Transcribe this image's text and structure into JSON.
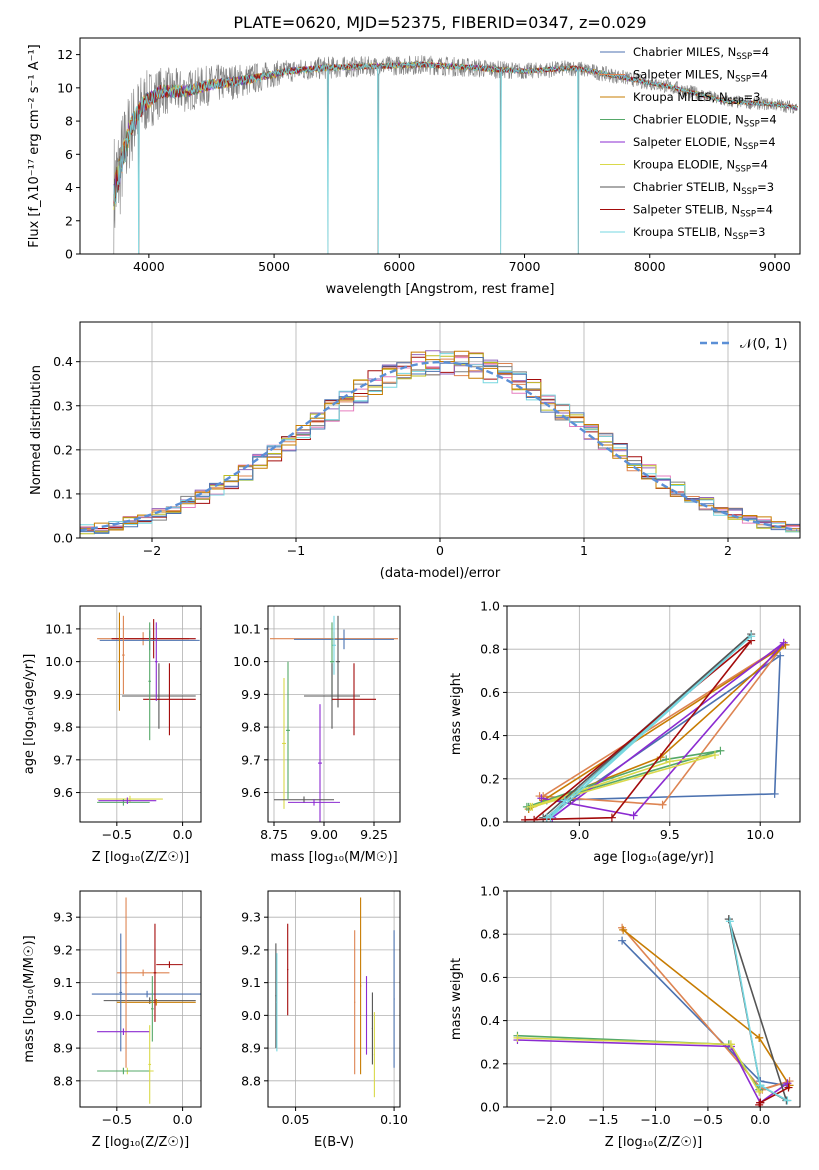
{
  "title": "PLATE=0620, MJD=52375, FIBERID=0347, z=0.029",
  "colors": {
    "grid": "#b0b0b0",
    "series": [
      "#4c72b0",
      "#dd8452",
      "#c77c02",
      "#55a868",
      "#8b2bd1",
      "#d9d94a",
      "#555555",
      "#a30b0b",
      "#76d7e0"
    ],
    "hist": [
      "#dd8452",
      "#e67dbf",
      "#7f7f7f",
      "#a30b0b",
      "#9467bd",
      "#bcbd22",
      "#76d7e0",
      "#4c72b0",
      "#c77c02"
    ]
  },
  "chart_data": [
    {
      "id": "spectrum",
      "type": "line",
      "xlabel": "wavelength [Angstrom, rest frame]",
      "ylabel": "Flux [f_λ10⁻¹⁷ erg cm⁻² s⁻¹ A⁻¹]",
      "xlim": [
        3450,
        9200
      ],
      "ylim": [
        0,
        13
      ],
      "xticks": [
        "4000",
        "5000",
        "6000",
        "7000",
        "8000",
        "9000"
      ],
      "yticks": [
        "0",
        "2",
        "4",
        "6",
        "8",
        "10",
        "12"
      ],
      "data_envelope": {
        "x": [
          3720,
          3780,
          3850,
          3950,
          4100,
          4300,
          4500,
          4800,
          5100,
          5400,
          5800,
          6200,
          6600,
          7000,
          7400,
          7800,
          8200,
          8600,
          9000,
          9180
        ],
        "y": [
          3.5,
          5.5,
          7.5,
          9.0,
          9.8,
          9.8,
          10.2,
          10.5,
          11.0,
          11.2,
          11.3,
          11.4,
          11.2,
          11.0,
          11.2,
          10.6,
          10.0,
          9.2,
          9.0,
          8.8
        ],
        "noise_amplitude": [
          4,
          3,
          2.5,
          2,
          1.5,
          1.3,
          1.2,
          1.0,
          0.7,
          0.7,
          0.6,
          0.6,
          0.6,
          0.5,
          0.5,
          0.45,
          0.45,
          0.4,
          0.4,
          0.4
        ]
      },
      "dropouts_x": [
        3920,
        5430,
        5830,
        6810,
        7430
      ],
      "legend_position": "upper right",
      "series": [
        {
          "name": "Chabrier MILES, N",
          "sub": "SSP",
          "count": "=4"
        },
        {
          "name": "Salpeter MILES, N",
          "sub": "SSP",
          "count": "=4"
        },
        {
          "name": "Kroupa MILES, N",
          "sub": "SSP",
          "count": "=3"
        },
        {
          "name": "Chabrier ELODIE, N",
          "sub": "SSP",
          "count": "=4"
        },
        {
          "name": "Salpeter ELODIE, N",
          "sub": "SSP",
          "count": "=4"
        },
        {
          "name": "Kroupa ELODIE, N",
          "sub": "SSP",
          "count": "=4"
        },
        {
          "name": "Chabrier STELIB, N",
          "sub": "SSP",
          "count": "=3"
        },
        {
          "name": "Salpeter STELIB, N",
          "sub": "SSP",
          "count": "=4"
        },
        {
          "name": "Kroupa STELIB, N",
          "sub": "SSP",
          "count": "=3"
        }
      ]
    },
    {
      "id": "residual-hist",
      "type": "line",
      "xlabel": "(data-model)/error",
      "ylabel": "Normed distribution",
      "xlim": [
        -2.5,
        2.5
      ],
      "ylim": [
        0,
        0.49
      ],
      "xticks": [
        "−2",
        "−1",
        "0",
        "1",
        "2"
      ],
      "yticks": [
        "0.0",
        "0.1",
        "0.2",
        "0.3",
        "0.4"
      ],
      "grid": true,
      "legend_position": "upper right",
      "gaussian_label": "𝒩(0, 1)",
      "bin_width": 0.1,
      "bin_start": -2.5,
      "n_bins": 50,
      "n_histograms": 9
    },
    {
      "id": "age-vs-Z",
      "type": "scatter",
      "xlabel": "Z [log₁₀(Z/Z☉)]",
      "ylabel": "age [log₁₀(age/yr)]",
      "xlim": [
        -0.78,
        0.14
      ],
      "ylim": [
        9.51,
        10.17
      ],
      "xticks": [
        "−0.5",
        "0.0"
      ],
      "yticks": [
        "9.6",
        "9.7",
        "9.8",
        "9.9",
        "10.0",
        "10.1"
      ],
      "grid": true,
      "crosses": [
        {
          "x": -0.3,
          "y": 10.07,
          "xerr": 0.35,
          "yerr": 0.02,
          "s": 1
        },
        {
          "x": -0.22,
          "y": 10.07,
          "xerr": 0.32,
          "yerr": 0.06,
          "s": 7
        },
        {
          "x": -0.25,
          "y": 10.065,
          "xerr": 0.38,
          "yerr": 0.03,
          "s": 0
        },
        {
          "x": -0.48,
          "y": 10.0,
          "xerr": 0.01,
          "yerr": 0.15,
          "s": 2
        },
        {
          "x": -0.45,
          "y": 10.02,
          "xerr": 0.01,
          "yerr": 0.12,
          "s": 1
        },
        {
          "x": -0.18,
          "y": 9.895,
          "xerr": 0.28,
          "yerr": 0.1,
          "s": 6
        },
        {
          "x": -0.1,
          "y": 9.885,
          "xerr": 0.2,
          "yerr": 0.11,
          "s": 7
        },
        {
          "x": -0.25,
          "y": 9.94,
          "xerr": 0.01,
          "yerr": 0.18,
          "s": 3
        },
        {
          "x": -0.2,
          "y": 10.0,
          "xerr": 0.01,
          "yerr": 0.12,
          "s": 4
        },
        {
          "x": -0.4,
          "y": 9.58,
          "xerr": 0.25,
          "yerr": 0.01,
          "s": 5
        },
        {
          "x": -0.45,
          "y": 9.57,
          "xerr": 0.2,
          "yerr": 0.01,
          "s": 3
        },
        {
          "x": -0.42,
          "y": 9.575,
          "xerr": 0.22,
          "yerr": 0.01,
          "s": 4
        }
      ]
    },
    {
      "id": "age-vs-mass",
      "type": "scatter",
      "xlabel": "mass [log₁₀(M/M☉)]",
      "ylabel": "",
      "xlim": [
        8.72,
        9.38
      ],
      "ylim": [
        9.51,
        10.17
      ],
      "xticks": [
        "8.75",
        "9.00",
        "9.25"
      ],
      "yticks": [
        "9.6",
        "9.7",
        "9.8",
        "9.9",
        "10.0",
        "10.1"
      ],
      "grid": true,
      "crosses": [
        {
          "x": 9.05,
          "y": 10.07,
          "xerr": 0.32,
          "yerr": 0.02,
          "s": 1
        },
        {
          "x": 9.1,
          "y": 10.068,
          "xerr": 0.25,
          "yerr": 0.03,
          "s": 0
        },
        {
          "x": 9.05,
          "y": 10.05,
          "xerr": 0.01,
          "yerr": 0.09,
          "s": 8
        },
        {
          "x": 9.07,
          "y": 10.0,
          "xerr": 0.01,
          "yerr": 0.14,
          "s": 6
        },
        {
          "x": 9.04,
          "y": 10.0,
          "xerr": 0.01,
          "yerr": 0.12,
          "s": 3
        },
        {
          "x": 9.04,
          "y": 9.895,
          "xerr": 0.14,
          "yerr": 0.1,
          "s": 6
        },
        {
          "x": 9.15,
          "y": 9.885,
          "xerr": 0.11,
          "yerr": 0.11,
          "s": 7
        },
        {
          "x": 8.82,
          "y": 9.79,
          "xerr": 0.01,
          "yerr": 0.21,
          "s": 3
        },
        {
          "x": 8.8,
          "y": 9.75,
          "xerr": 0.01,
          "yerr": 0.2,
          "s": 5
        },
        {
          "x": 8.98,
          "y": 9.69,
          "xerr": 0.01,
          "yerr": 0.18,
          "s": 4
        },
        {
          "x": 8.9,
          "y": 9.578,
          "xerr": 0.15,
          "yerr": 0.01,
          "s": 6
        },
        {
          "x": 8.95,
          "y": 9.57,
          "xerr": 0.13,
          "yerr": 0.01,
          "s": 4
        }
      ]
    },
    {
      "id": "weight-vs-age",
      "type": "line",
      "xlabel": "age [log₁₀(age/yr)]",
      "ylabel": "mass weight",
      "xlim": [
        8.6,
        10.22
      ],
      "ylim": [
        0,
        1
      ],
      "xticks": [
        "9.0",
        "9.5",
        "10.0"
      ],
      "yticks": [
        "0.0",
        "0.2",
        "0.4",
        "0.6",
        "0.8",
        "1.0"
      ],
      "grid": true,
      "series": [
        {
          "s": 0,
          "x": [
            8.82,
            10.08,
            10.11,
            8.95
          ],
          "y": [
            0.1,
            0.13,
            0.77,
            0.1
          ]
        },
        {
          "s": 1,
          "x": [
            8.78,
            9.46,
            10.13,
            8.8
          ],
          "y": [
            0.12,
            0.08,
            0.82,
            0.12
          ]
        },
        {
          "s": 2,
          "x": [
            8.72,
            9.45,
            10.14,
            8.8
          ],
          "y": [
            0.06,
            0.3,
            0.82,
            0.1
          ]
        },
        {
          "s": 3,
          "x": [
            8.71,
            9.48,
            9.78,
            8.72
          ],
          "y": [
            0.07,
            0.29,
            0.33,
            0.07
          ]
        },
        {
          "s": 4,
          "x": [
            8.79,
            9.3,
            10.13,
            8.85
          ],
          "y": [
            0.11,
            0.03,
            0.83,
            0.02
          ]
        },
        {
          "s": 5,
          "x": [
            8.73,
            9.5,
            9.75,
            8.74
          ],
          "y": [
            0.07,
            0.28,
            0.31,
            0.07
          ]
        },
        {
          "s": 6,
          "x": [
            8.8,
            9.95,
            8.82,
            8.95
          ],
          "y": [
            0.02,
            0.87,
            0.02,
            0.1
          ]
        },
        {
          "s": 7,
          "x": [
            8.7,
            9.18,
            9.95,
            8.75
          ],
          "y": [
            0.01,
            0.02,
            0.84,
            0.01
          ]
        },
        {
          "s": 8,
          "x": [
            8.82,
            9.95,
            8.84,
            8.92
          ],
          "y": [
            0.02,
            0.86,
            0.02,
            0.1
          ]
        }
      ]
    },
    {
      "id": "mass-vs-Z",
      "type": "scatter",
      "xlabel": "Z [log₁₀(Z/Z☉)]",
      "ylabel": "mass [log₁₀(M/M☉)]",
      "xlim": [
        -0.78,
        0.14
      ],
      "ylim": [
        8.72,
        9.38
      ],
      "xticks": [
        "−0.5",
        "0.0"
      ],
      "yticks": [
        "8.8",
        "8.9",
        "9.0",
        "9.1",
        "9.2",
        "9.3"
      ],
      "grid": true,
      "crosses": [
        {
          "x": -0.27,
          "y": 9.065,
          "xerr": 0.42,
          "yerr": 0.01,
          "s": 0
        },
        {
          "x": -0.25,
          "y": 9.045,
          "xerr": 0.35,
          "yerr": 0.01,
          "s": 6
        },
        {
          "x": -0.2,
          "y": 9.04,
          "xerr": 0.3,
          "yerr": 0.01,
          "s": 2
        },
        {
          "x": -0.3,
          "y": 9.13,
          "xerr": 0.2,
          "yerr": 0.01,
          "s": 1
        },
        {
          "x": -0.1,
          "y": 9.155,
          "xerr": 0.1,
          "yerr": 0.01,
          "s": 7
        },
        {
          "x": -0.43,
          "y": 9.1,
          "xerr": 0.01,
          "yerr": 0.26,
          "s": 1
        },
        {
          "x": -0.47,
          "y": 9.07,
          "xerr": 0.01,
          "yerr": 0.18,
          "s": 0
        },
        {
          "x": -0.21,
          "y": 9.13,
          "xerr": 0.01,
          "yerr": 0.15,
          "s": 7
        },
        {
          "x": -0.23,
          "y": 9.02,
          "xerr": 0.01,
          "yerr": 0.1,
          "s": 3
        },
        {
          "x": -0.45,
          "y": 8.95,
          "xerr": 0.2,
          "yerr": 0.01,
          "s": 4
        },
        {
          "x": -0.42,
          "y": 8.83,
          "xerr": 0.2,
          "yerr": 0.01,
          "s": 5
        },
        {
          "x": -0.45,
          "y": 8.83,
          "xerr": 0.2,
          "yerr": 0.01,
          "s": 3
        },
        {
          "x": -0.25,
          "y": 8.85,
          "xerr": 0.01,
          "yerr": 0.12,
          "s": 5
        }
      ]
    },
    {
      "id": "mass-vs-ebv",
      "type": "scatter",
      "xlabel": "E(B-V)",
      "ylabel": "",
      "xlim": [
        0.036,
        0.103
      ],
      "ylim": [
        8.72,
        9.38
      ],
      "xticks": [
        "0.05",
        "0.10"
      ],
      "yticks": [
        "8.8",
        "8.9",
        "9.0",
        "9.1",
        "9.2",
        "9.3"
      ],
      "grid": true,
      "crosses": [
        {
          "x": 0.04,
          "y": 9.06,
          "xerr": 0.0003,
          "yerr": 0.16,
          "s": 6
        },
        {
          "x": 0.0405,
          "y": 9.04,
          "xerr": 0.0003,
          "yerr": 0.15,
          "s": 8
        },
        {
          "x": 0.046,
          "y": 9.14,
          "xerr": 0.0003,
          "yerr": 0.14,
          "s": 7
        },
        {
          "x": 0.08,
          "y": 9.04,
          "xerr": 0.0003,
          "yerr": 0.22,
          "s": 1
        },
        {
          "x": 0.083,
          "y": 9.09,
          "xerr": 0.0003,
          "yerr": 0.27,
          "s": 2
        },
        {
          "x": 0.086,
          "y": 9.0,
          "xerr": 0.0003,
          "yerr": 0.12,
          "s": 4
        },
        {
          "x": 0.089,
          "y": 8.96,
          "xerr": 0.0003,
          "yerr": 0.11,
          "s": 6
        },
        {
          "x": 0.09,
          "y": 8.88,
          "xerr": 0.0003,
          "yerr": 0.13,
          "s": 5
        },
        {
          "x": 0.1,
          "y": 9.05,
          "xerr": 0.0003,
          "yerr": 0.21,
          "s": 0
        }
      ]
    },
    {
      "id": "weight-vs-Z",
      "type": "line",
      "xlabel": "Z [log₁₀(Z/Z☉)]",
      "ylabel": "mass weight",
      "xlim": [
        -2.42,
        0.38
      ],
      "ylim": [
        0,
        1
      ],
      "xticks": [
        "−2.0",
        "−1.5",
        "−1.0",
        "−0.5",
        "0.0"
      ],
      "yticks": [
        "0.0",
        "0.2",
        "0.4",
        "0.6",
        "0.8",
        "1.0"
      ],
      "grid": true,
      "series": [
        {
          "s": 0,
          "x": [
            -1.32,
            0.0,
            0.25,
            0.0
          ],
          "y": [
            0.77,
            0.12,
            0.1,
            0.12
          ]
        },
        {
          "s": 1,
          "x": [
            -1.32,
            0.02,
            0.28,
            0.0
          ],
          "y": [
            0.83,
            0.08,
            0.12,
            0.08
          ]
        },
        {
          "s": 2,
          "x": [
            -1.31,
            -0.01,
            0.28,
            -0.01
          ],
          "y": [
            0.82,
            0.32,
            0.1,
            0.32
          ]
        },
        {
          "s": 3,
          "x": [
            -2.32,
            -0.3,
            -0.01,
            -0.3
          ],
          "y": [
            0.33,
            0.29,
            0.08,
            0.29
          ]
        },
        {
          "s": 4,
          "x": [
            -2.32,
            -0.28,
            0.0,
            0.26
          ],
          "y": [
            0.31,
            0.28,
            0.02,
            0.11
          ]
        },
        {
          "s": 5,
          "x": [
            -2.32,
            -0.28,
            -0.01,
            -0.28
          ],
          "y": [
            0.32,
            0.29,
            0.07,
            0.29
          ]
        },
        {
          "s": 6,
          "x": [
            -0.3,
            0.0,
            0.25,
            -0.3
          ],
          "y": [
            0.87,
            0.1,
            0.03,
            0.87
          ]
        },
        {
          "s": 7,
          "x": [
            -0.01,
            0.0,
            0.27,
            0.0
          ],
          "y": [
            0.01,
            0.02,
            0.09,
            0.02
          ]
        },
        {
          "s": 8,
          "x": [
            -0.29,
            0.0,
            0.26,
            0.0
          ],
          "y": [
            0.86,
            0.1,
            0.03,
            0.1
          ]
        }
      ]
    }
  ]
}
